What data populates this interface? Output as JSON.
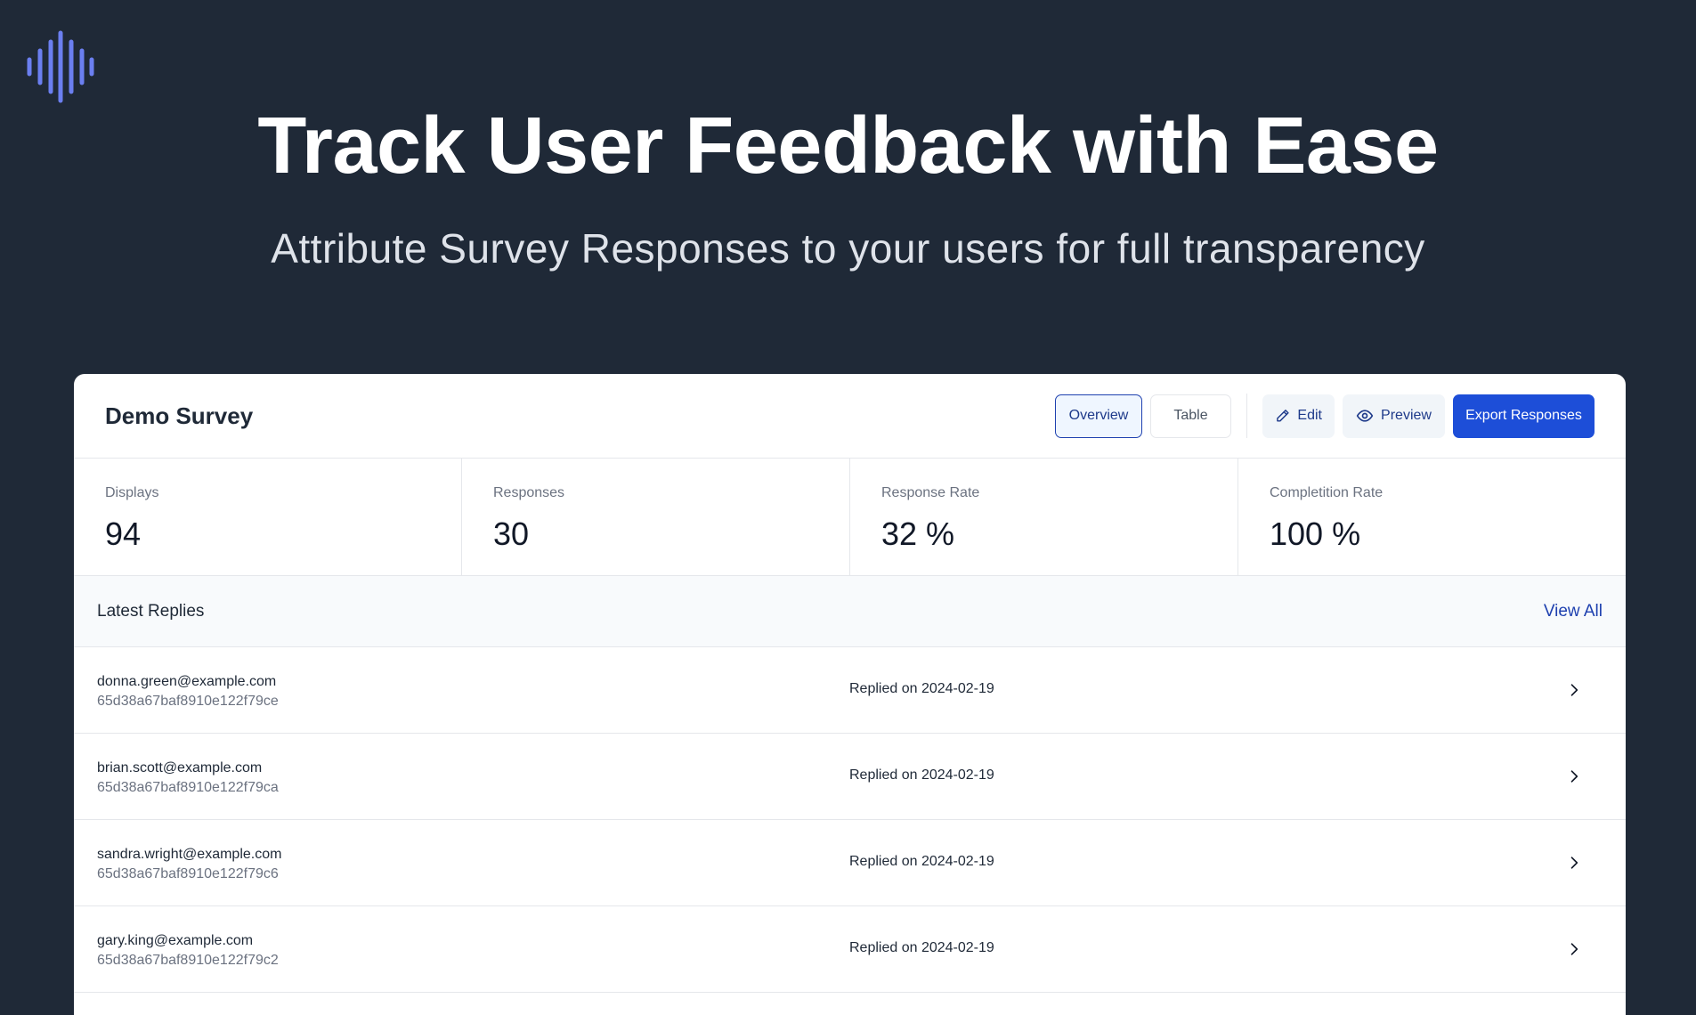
{
  "hero": {
    "title": "Track User Feedback with Ease",
    "subtitle": "Attribute Survey Responses to your users for full transparency"
  },
  "logo": {
    "icon": "soundwave-logo-icon",
    "color": "#6b7ff0"
  },
  "survey": {
    "title": "Demo Survey",
    "buttons": {
      "overview": "Overview",
      "table": "Table",
      "edit": "Edit",
      "preview": "Preview",
      "export": "Export Responses"
    }
  },
  "stats": [
    {
      "label": "Displays",
      "value": "94"
    },
    {
      "label": "Responses",
      "value": "30"
    },
    {
      "label": "Response Rate",
      "value": "32 %"
    },
    {
      "label": "Completition Rate",
      "value": "100 %"
    }
  ],
  "replies": {
    "title": "Latest Replies",
    "view_all": "View All",
    "items": [
      {
        "email": "donna.green@example.com",
        "id": "65d38a67baf8910e122f79ce",
        "date": "Replied on 2024-02-19"
      },
      {
        "email": "brian.scott@example.com",
        "id": "65d38a67baf8910e122f79ca",
        "date": "Replied on 2024-02-19"
      },
      {
        "email": "sandra.wright@example.com",
        "id": "65d38a67baf8910e122f79c6",
        "date": "Replied on 2024-02-19"
      },
      {
        "email": "gary.king@example.com",
        "id": "65d38a67baf8910e122f79c2",
        "date": "Replied on 2024-02-19"
      }
    ]
  },
  "colors": {
    "background": "#1f2937",
    "accent": "#1d4ed8",
    "link": "#1e40af"
  }
}
